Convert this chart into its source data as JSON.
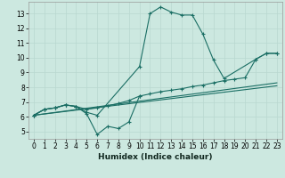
{
  "xlabel": "Humidex (Indice chaleur)",
  "background_color": "#cce8e0",
  "grid_color": "#b8d8d0",
  "line_color": "#1a6e64",
  "xlim": [
    -0.5,
    23.5
  ],
  "ylim": [
    4.5,
    13.8
  ],
  "xticks": [
    0,
    1,
    2,
    3,
    4,
    5,
    6,
    7,
    8,
    9,
    10,
    11,
    12,
    13,
    14,
    15,
    16,
    17,
    18,
    19,
    20,
    21,
    22,
    23
  ],
  "yticks": [
    5,
    6,
    7,
    8,
    9,
    10,
    11,
    12,
    13
  ],
  "series": [
    {
      "x": [
        0,
        1,
        2,
        3,
        4,
        5,
        6,
        10,
        11,
        12,
        13,
        14,
        15,
        16,
        17,
        18,
        21,
        22,
        23
      ],
      "y": [
        6.1,
        6.5,
        6.6,
        6.8,
        6.7,
        6.3,
        6.1,
        9.4,
        13.0,
        13.45,
        13.1,
        12.9,
        12.9,
        11.6,
        9.85,
        8.6,
        9.9,
        10.3,
        10.3
      ],
      "marker": true
    },
    {
      "x": [
        0,
        1,
        2,
        3,
        4,
        5,
        6,
        7,
        8,
        9,
        10,
        11,
        12,
        13,
        14,
        15,
        16,
        17,
        18,
        19,
        20,
        21,
        22,
        23
      ],
      "y": [
        6.1,
        6.5,
        6.6,
        6.8,
        6.7,
        6.5,
        6.6,
        6.75,
        6.9,
        7.1,
        7.4,
        7.55,
        7.7,
        7.8,
        7.9,
        8.05,
        8.15,
        8.3,
        8.45,
        8.55,
        8.65,
        9.9,
        10.3,
        10.3
      ],
      "marker": true
    },
    {
      "x": [
        0,
        1,
        2,
        3,
        4,
        5,
        6,
        7,
        8,
        9,
        10
      ],
      "y": [
        6.1,
        6.5,
        6.6,
        6.8,
        6.7,
        6.2,
        4.8,
        5.35,
        5.2,
        5.65,
        7.4
      ],
      "marker": true
    },
    {
      "x": [
        0,
        23
      ],
      "y": [
        6.1,
        8.3
      ],
      "marker": false
    },
    {
      "x": [
        0,
        23
      ],
      "y": [
        6.1,
        8.1
      ],
      "marker": false
    }
  ]
}
